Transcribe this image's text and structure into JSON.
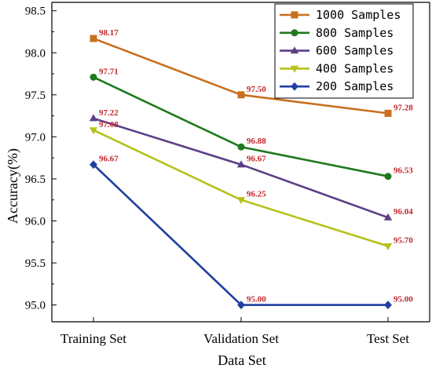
{
  "chart_data": {
    "type": "line",
    "title": "",
    "xlabel": "Data Set",
    "ylabel": "Accuracy(%)",
    "categories": [
      "Training Set",
      "Validation Set",
      "Test Set"
    ],
    "ylim": [
      94.8,
      98.6
    ],
    "yticks": [
      "95.0",
      "95.5",
      "96.0",
      "96.5",
      "97.0",
      "97.5",
      "98.0",
      "98.5"
    ],
    "grid": false,
    "legend_position": "top-right",
    "label_color": "#c0272d",
    "series": [
      {
        "name": "1000 Samples",
        "color": "#c8701e",
        "marker": "square",
        "values": [
          98.17,
          97.5,
          97.28
        ],
        "labels": [
          "98.17",
          "97.50",
          "97.28"
        ]
      },
      {
        "name": "800 Samples",
        "color": "#1e7a1e",
        "marker": "circle",
        "values": [
          97.71,
          96.88,
          96.53
        ],
        "labels": [
          "97.71",
          "96.88",
          "96.53"
        ]
      },
      {
        "name": "600 Samples",
        "color": "#5b3f86",
        "marker": "triangle-up",
        "values": [
          97.22,
          96.67,
          96.04
        ],
        "labels": [
          "97.22",
          "96.67",
          "96.04"
        ]
      },
      {
        "name": "400 Samples",
        "color": "#b5c218",
        "marker": "triangle-down",
        "values": [
          97.08,
          96.25,
          95.7
        ],
        "labels": [
          "97.08",
          "96.25",
          "95.70"
        ]
      },
      {
        "name": "200 Samples",
        "color": "#1f3fa0",
        "marker": "diamond",
        "values": [
          96.67,
          95.0,
          95.0
        ],
        "labels": [
          "96.67",
          "95.00",
          "95.00"
        ]
      }
    ]
  }
}
